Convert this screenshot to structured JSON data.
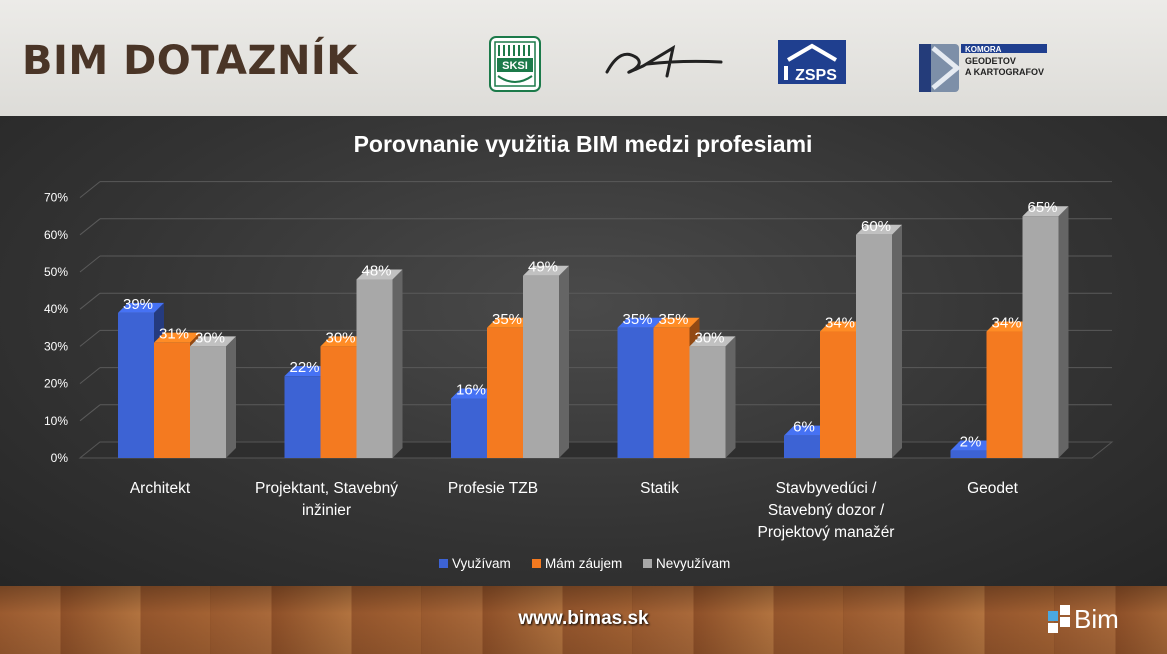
{
  "header": {
    "title": "BIM DOTAZNÍK",
    "logos": [
      {
        "name": "sksi-logo",
        "text": "SKSI"
      },
      {
        "name": "signature-logo",
        "text": ""
      },
      {
        "name": "zsps-logo",
        "text": "ZSPS"
      },
      {
        "name": "komora-logo",
        "lines": [
          "KOMORA",
          "GEODETOV",
          "A KARTOGRAFOV"
        ]
      }
    ]
  },
  "footer": {
    "url": "www.bimas.sk",
    "brand": "Bim"
  },
  "colors": {
    "series": [
      "#3d63d4",
      "#f47a20",
      "#a8a8a8"
    ],
    "background": "#363636",
    "header_bg": "#e4e3e0",
    "title_color": "#4a3527"
  },
  "chart_data": {
    "type": "bar",
    "title": "Porovnanie využitia BIM medzi profesiami",
    "categories": [
      [
        "Architekt"
      ],
      [
        "Projektant, Stavebný",
        "inžinier"
      ],
      [
        "Profesie TZB"
      ],
      [
        "Statik"
      ],
      [
        "Stavbyvedúci /",
        "Stavebný dozor /",
        "Projektový manažér"
      ],
      [
        "Geodet"
      ]
    ],
    "series": [
      {
        "name": "Využívam",
        "values": [
          39,
          22,
          16,
          35,
          6,
          2
        ]
      },
      {
        "name": "Mám záujem",
        "values": [
          31,
          30,
          35,
          35,
          34,
          34
        ]
      },
      {
        "name": "Nevyužívam",
        "values": [
          30,
          48,
          49,
          30,
          60,
          65
        ]
      }
    ],
    "value_suffix": "%",
    "yticks": [
      "0%",
      "10%",
      "20%",
      "30%",
      "40%",
      "50%",
      "60%",
      "70%"
    ],
    "ylim": [
      0,
      70
    ],
    "legend_position": "bottom",
    "grid": true
  }
}
